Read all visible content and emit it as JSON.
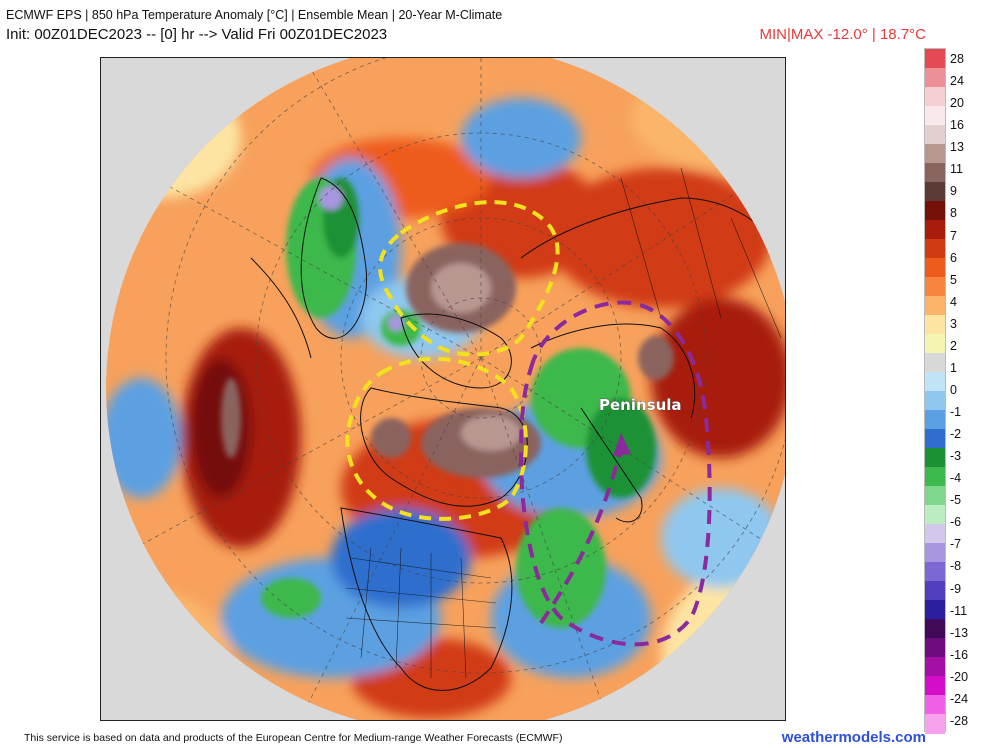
{
  "header": {
    "title_line1": "ECMWF EPS | 850 hPa Temperature Anomaly [°C] | Ensemble Mean | 20-Year M-Climate",
    "title_line2": "Init: 00Z01DEC2023 -- [0] hr --> Valid Fri 00Z01DEC2023",
    "minmax": "MIN|MAX -12.0° | 18.7°C"
  },
  "colorbar": {
    "labels": [
      "28",
      "24",
      "20",
      "16",
      "13",
      "11",
      "9",
      "8",
      "7",
      "6",
      "5",
      "4",
      "3",
      "2",
      "1",
      "0",
      "-1",
      "-2",
      "-3",
      "-4",
      "-5",
      "-6",
      "-7",
      "-8",
      "-9",
      "-11",
      "-13",
      "-16",
      "-20",
      "-24",
      "-28"
    ],
    "colors": [
      "#e24a55",
      "#ec8f97",
      "#f6cfd1",
      "#fae9ea",
      "#e3cfcd",
      "#b99791",
      "#8a645f",
      "#5c3b36",
      "#741008",
      "#a81c0c",
      "#d13a12",
      "#ee5b1d",
      "#f78440",
      "#fab56a",
      "#fde4a3",
      "#f5f5b2",
      "#d8d8d8",
      "#c0e4f6",
      "#8fc7ef",
      "#5ba0e2",
      "#2f6ecd",
      "#1c9134",
      "#3cb84c",
      "#7fd88a",
      "#bcedc0",
      "#d3c7ec",
      "#a896e0",
      "#7d67d2",
      "#5040c0",
      "#2a1f9e",
      "#3f0a58",
      "#6e0c7e",
      "#a40fa6",
      "#d40ec8",
      "#f060e6",
      "#f6a2ef"
    ]
  },
  "map": {
    "annotation_label": "Peninsula",
    "colors": {
      "warm_outline": "#f1e11e",
      "cold_outline": "#8a2a9c",
      "coastline": "#111111",
      "background": "#d8d8d8"
    }
  },
  "footer": {
    "source_text": "This service is based on data and products of the European Centre for Medium-range Weather Forecasts (ECMWF)",
    "brand": "weathermodels.com"
  }
}
